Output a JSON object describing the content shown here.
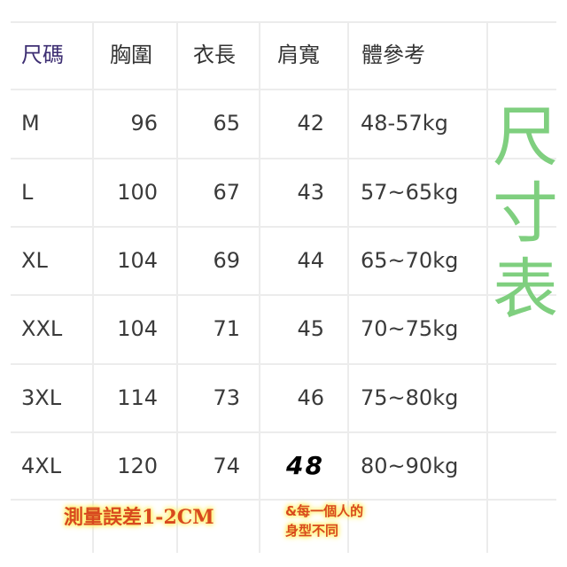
{
  "headers": [
    "尺碼",
    "胸圍",
    "衣長",
    "肩寬",
    "體參考"
  ],
  "rows": [
    {
      "size": "M",
      "chest": "96",
      "length": "65",
      "shoulder": "42",
      "weight": "48-57kg"
    },
    {
      "size": "L",
      "chest": "100",
      "length": "67",
      "shoulder": "43",
      "weight": "57~65kg"
    },
    {
      "size": "XL",
      "chest": "104",
      "length": "69",
      "shoulder": "44",
      "weight": "65~70kg"
    },
    {
      "size": "XXL",
      "chest": "104",
      "length": "71",
      "shoulder": "45",
      "weight": "70~75kg"
    },
    {
      "size": "3XL",
      "chest": "114",
      "length": "73",
      "shoulder": "46",
      "weight": "75~80kg"
    },
    {
      "size": "4XL",
      "chest": "120",
      "length": "74",
      "shoulder": "48",
      "weight": "80~90kg"
    }
  ],
  "side_title": [
    "尺",
    "寸",
    "表"
  ],
  "notes": {
    "error": "測量誤差1-2CM",
    "line1": "&每一個人的",
    "line2": "身型不同"
  },
  "colors": {
    "header_first": "#3e2f73",
    "side_title": "#7fcf7f",
    "note": "#d8491e",
    "note_glow": "#fff36a"
  }
}
